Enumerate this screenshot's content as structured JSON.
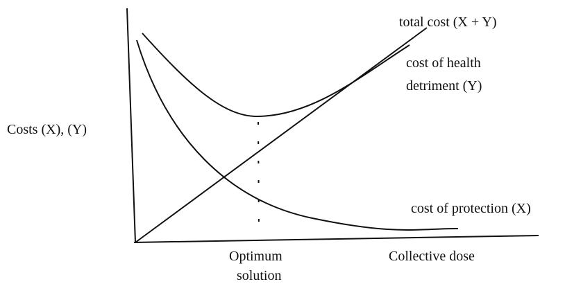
{
  "labels": {
    "total_cost": "total cost (X + Y)",
    "health_detriment": [
      "cost of health",
      "detriment (Y)"
    ],
    "y_axis": "Costs (X), (Y)",
    "protection": "cost of protection (X)",
    "optimum": [
      "Optimum",
      "solution"
    ],
    "x_axis": "Collective dose"
  }
}
